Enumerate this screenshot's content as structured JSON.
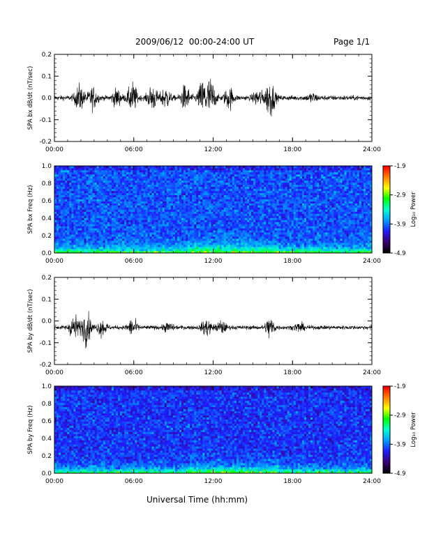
{
  "header": {
    "title": "2009/06/12  00:00-24:00 UT",
    "page": "Page 1/1"
  },
  "xlabel": "Universal Time (hh:mm)",
  "x_ticks": [
    "00:00",
    "06:00",
    "12:00",
    "18:00",
    "24:00"
  ],
  "chart_data": [
    {
      "type": "line",
      "ylabel": "SPA bx dB/dt (nT/sec)",
      "xlim": [
        0,
        24
      ],
      "ylim": [
        -0.2,
        0.2
      ],
      "yticks": [
        "-0.2",
        "-0.1",
        "0.0",
        "0.1",
        "0.2"
      ],
      "baseline": 0.0,
      "bursts": [
        {
          "t": 1.9,
          "amp": 0.06
        },
        {
          "t": 2.9,
          "amp": 0.05
        },
        {
          "t": 4.7,
          "amp": 0.04
        },
        {
          "t": 5.9,
          "amp": 0.07
        },
        {
          "t": 7.4,
          "amp": 0.06
        },
        {
          "t": 8.4,
          "amp": 0.05
        },
        {
          "t": 9.9,
          "amp": 0.06
        },
        {
          "t": 11.2,
          "amp": 0.08
        },
        {
          "t": 11.8,
          "amp": 0.09
        },
        {
          "t": 13.2,
          "amp": 0.05
        },
        {
          "t": 15.4,
          "amp": 0.04
        },
        {
          "t": 16.3,
          "amp": 0.09
        },
        {
          "t": 19.5,
          "amp": 0.02
        }
      ],
      "quiet_amplitude": 0.012
    },
    {
      "type": "heatmap",
      "ylabel": "SPA bx Freq (Hz)",
      "xlim": [
        0,
        24
      ],
      "ylim": [
        0.0,
        1.0
      ],
      "yticks": [
        "0.0",
        "0.2",
        "0.4",
        "0.6",
        "0.8",
        "1.0"
      ],
      "colorbar": {
        "label": "Log₁₀ Power",
        "min": -4.9,
        "max": -1.9,
        "ticks": [
          "-1.9",
          "-2.9",
          "-3.9",
          "-4.9"
        ]
      },
      "background_level": -4.0,
      "low_freq_level": -2.6
    },
    {
      "type": "line",
      "ylabel": "SPA by dB/dt (nT/sec)",
      "xlim": [
        0,
        24
      ],
      "ylim": [
        -0.2,
        0.2
      ],
      "yticks": [
        "-0.2",
        "-0.1",
        "0.0",
        "0.1",
        "0.2"
      ],
      "baseline": -0.03,
      "bursts": [
        {
          "t": 1.5,
          "amp": 0.06
        },
        {
          "t": 2.4,
          "amp": 0.08
        },
        {
          "t": 3.6,
          "amp": 0.04
        },
        {
          "t": 5.9,
          "amp": 0.04
        },
        {
          "t": 8.6,
          "amp": 0.02
        },
        {
          "t": 11.5,
          "amp": 0.04
        },
        {
          "t": 12.6,
          "amp": 0.03
        },
        {
          "t": 16.3,
          "amp": 0.05
        },
        {
          "t": 18.5,
          "amp": 0.02
        }
      ],
      "quiet_amplitude": 0.01
    },
    {
      "type": "heatmap",
      "ylabel": "SPA by Freq (Hz)",
      "xlim": [
        0,
        24
      ],
      "ylim": [
        0.0,
        1.0
      ],
      "yticks": [
        "0.0",
        "0.2",
        "0.4",
        "0.6",
        "0.8",
        "1.0"
      ],
      "colorbar": {
        "label": "Log₁₀ Power",
        "min": -4.9,
        "max": -1.9,
        "ticks": [
          "-1.9",
          "-2.9",
          "-3.9",
          "-4.9"
        ]
      },
      "background_level": -4.1,
      "low_freq_level": -2.7
    }
  ],
  "colors": {
    "trace": "#000000",
    "colormap": [
      "#000000",
      "#3c0078",
      "#1e1eff",
      "#00a0ff",
      "#00ffd0",
      "#00ff00",
      "#ffff00",
      "#ff8000",
      "#ff0000"
    ]
  }
}
